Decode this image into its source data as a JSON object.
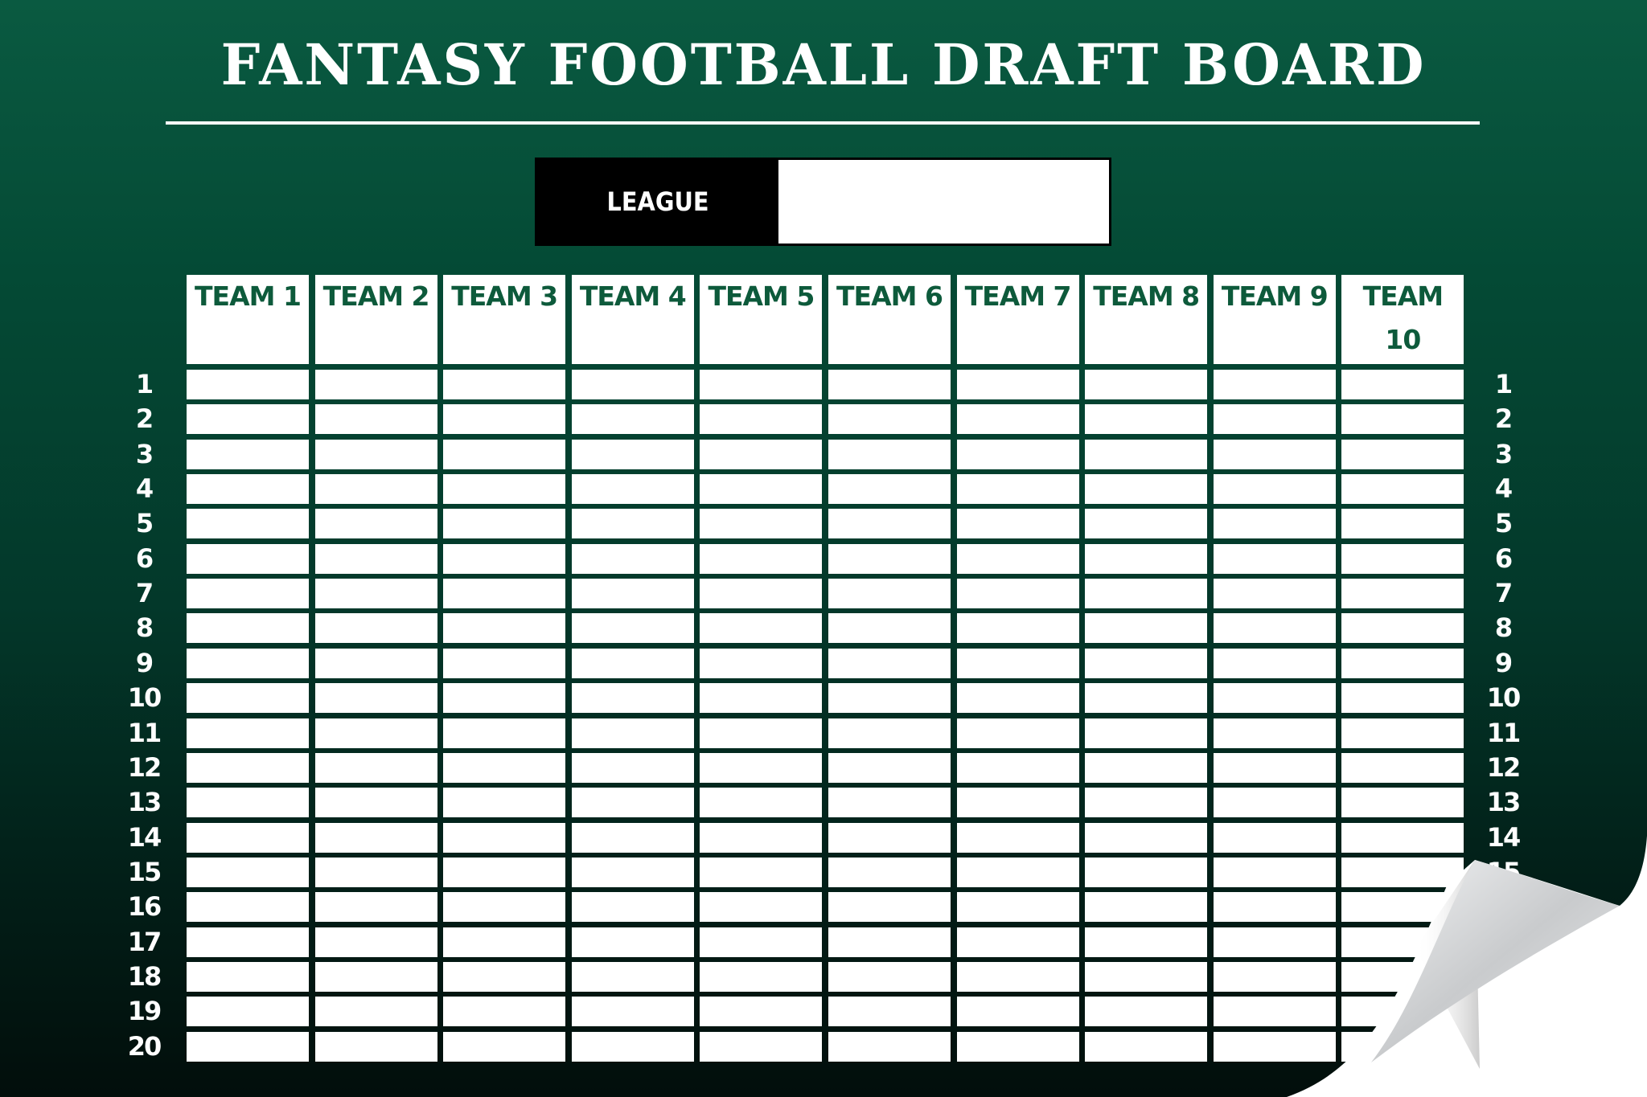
{
  "title": "FANTASY FOOTBALL DRAFT BOARD",
  "league": {
    "label": "LEAGUE",
    "value": ""
  },
  "teams": [
    "TEAM 1",
    "TEAM 2",
    "TEAM 3",
    "TEAM 4",
    "TEAM 5",
    "TEAM 6",
    "TEAM 7",
    "TEAM 8",
    "TEAM 9",
    "TEAM 10"
  ],
  "rounds": [
    "1",
    "2",
    "3",
    "4",
    "5",
    "6",
    "7",
    "8",
    "9",
    "10",
    "11",
    "12",
    "13",
    "14",
    "15",
    "16",
    "17",
    "18",
    "19",
    "20"
  ],
  "colors": {
    "board_top": "#0a5a41",
    "board_bottom": "#020e0b",
    "team_text": "#0d5a3b",
    "cell": "#ffffff"
  },
  "decoration": "page-curl-icon"
}
